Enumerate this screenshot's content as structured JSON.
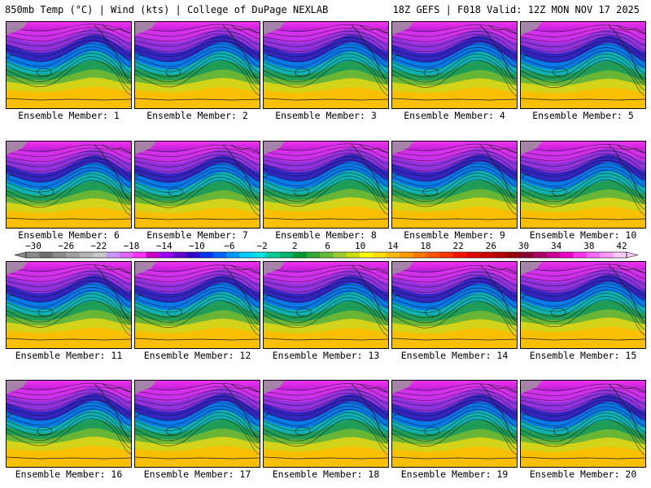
{
  "header": {
    "left": "850mb Temp (°C) | Wind (kts) | College of DuPage NEXLAB",
    "right": "18Z GEFS | F018 Valid: 12Z MON NOV 17 2025"
  },
  "panels": [
    {
      "label": "Ensemble Member: 1"
    },
    {
      "label": "Ensemble Member: 2"
    },
    {
      "label": "Ensemble Member: 3"
    },
    {
      "label": "Ensemble Member: 4"
    },
    {
      "label": "Ensemble Member: 5"
    },
    {
      "label": "Ensemble Member: 6"
    },
    {
      "label": "Ensemble Member: 7"
    },
    {
      "label": "Ensemble Member: 8"
    },
    {
      "label": "Ensemble Member: 9"
    },
    {
      "label": "Ensemble Member: 10"
    },
    {
      "label": "Ensemble Member: 11"
    },
    {
      "label": "Ensemble Member: 12"
    },
    {
      "label": "Ensemble Member: 13"
    },
    {
      "label": "Ensemble Member: 14"
    },
    {
      "label": "Ensemble Member: 15"
    },
    {
      "label": "Ensemble Member: 16"
    },
    {
      "label": "Ensemble Member: 17"
    },
    {
      "label": "Ensemble Member: 18"
    },
    {
      "label": "Ensemble Member: 19"
    },
    {
      "label": "Ensemble Member: 20"
    }
  ],
  "colorbar": {
    "tick_labels": [
      "−30",
      "−26",
      "−22",
      "−18",
      "−14",
      "−10",
      "−6",
      "−2",
      "2",
      "6",
      "10",
      "14",
      "18",
      "22",
      "26",
      "30",
      "34",
      "38",
      "42"
    ],
    "colors": [
      "#8c8c8c",
      "#6e6e6e",
      "#8a8a8a",
      "#a0a0a0",
      "#b4b4b4",
      "#c8c8c8",
      "#cc99ff",
      "#e066ff",
      "#ff33ff",
      "#cc00cc",
      "#9900ff",
      "#6600cc",
      "#3300cc",
      "#0033ff",
      "#0066ff",
      "#0099ff",
      "#00ccff",
      "#00e0e0",
      "#00cc99",
      "#00b36b",
      "#009933",
      "#33aa33",
      "#66bb33",
      "#99cc33",
      "#ccdd00",
      "#ffff00",
      "#ffdd00",
      "#ffbb00",
      "#ff9900",
      "#ff7700",
      "#ff5500",
      "#ff3300",
      "#ff1100",
      "#e60000",
      "#cc0000",
      "#b30000",
      "#990000",
      "#880033",
      "#aa0066",
      "#cc0099",
      "#ee00cc",
      "#ff33ee",
      "#ff66ff",
      "#ff99ff",
      "#ffccff"
    ]
  }
}
